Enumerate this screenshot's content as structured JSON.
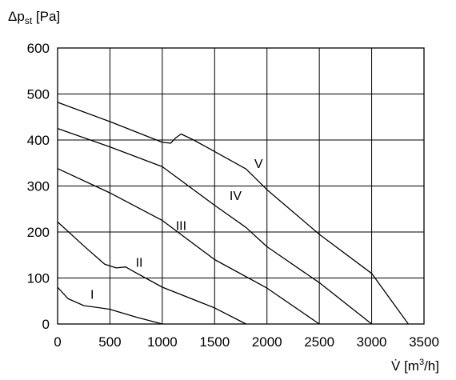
{
  "chart_data": {
    "type": "line",
    "title": "",
    "ylabel": "Δpst [Pa]",
    "ylabel_parts": {
      "base": "Δp",
      "sub": "st",
      "unit": " [Pa]"
    },
    "xlabel": "V̇ [m³/h]",
    "xlabel_parts": {
      "base": "V̇",
      "unit": " [m",
      "sup": "3",
      "tail": "/h]"
    },
    "xlim": [
      0,
      3500
    ],
    "ylim": [
      0,
      600
    ],
    "x_ticks": [
      0,
      500,
      1000,
      1500,
      2000,
      2500,
      3000,
      3500
    ],
    "y_ticks": [
      0,
      100,
      200,
      300,
      400,
      500,
      600
    ],
    "x_tick_labels": [
      "0",
      "500",
      "1000",
      "1500",
      "2000",
      "2500",
      "3000",
      "3500"
    ],
    "y_tick_labels": [
      "0",
      "100",
      "200",
      "300",
      "400",
      "500",
      "600"
    ],
    "grid": true,
    "legend": "none",
    "series": [
      {
        "label": "I",
        "label_at": [
          330,
          65
        ],
        "points": [
          [
            0,
            80
          ],
          [
            100,
            55
          ],
          [
            250,
            40
          ],
          [
            500,
            32
          ],
          [
            750,
            15
          ],
          [
            1000,
            0
          ]
        ]
      },
      {
        "label": "II",
        "label_at": [
          780,
          135
        ],
        "points": [
          [
            0,
            222
          ],
          [
            250,
            170
          ],
          [
            450,
            130
          ],
          [
            560,
            122
          ],
          [
            650,
            124
          ],
          [
            720,
            115
          ],
          [
            1000,
            80
          ],
          [
            1500,
            35
          ],
          [
            1800,
            0
          ]
        ]
      },
      {
        "label": "III",
        "label_at": [
          1180,
          215
        ],
        "points": [
          [
            0,
            338
          ],
          [
            500,
            285
          ],
          [
            1000,
            225
          ],
          [
            1500,
            140
          ],
          [
            2000,
            78
          ],
          [
            2500,
            0
          ]
        ]
      },
      {
        "label": "IV",
        "label_at": [
          1700,
          280
        ],
        "points": [
          [
            0,
            425
          ],
          [
            500,
            385
          ],
          [
            1000,
            342
          ],
          [
            1500,
            258
          ],
          [
            1800,
            210
          ],
          [
            2000,
            168
          ],
          [
            2500,
            90
          ],
          [
            3000,
            0
          ]
        ]
      },
      {
        "label": "V",
        "label_at": [
          1920,
          350
        ],
        "points": [
          [
            0,
            482
          ],
          [
            500,
            440
          ],
          [
            1000,
            395
          ],
          [
            1080,
            393
          ],
          [
            1130,
            405
          ],
          [
            1180,
            413
          ],
          [
            1300,
            400
          ],
          [
            1500,
            375
          ],
          [
            1800,
            337
          ],
          [
            2000,
            292
          ],
          [
            2500,
            195
          ],
          [
            3000,
            110
          ],
          [
            3350,
            0
          ]
        ]
      }
    ]
  }
}
